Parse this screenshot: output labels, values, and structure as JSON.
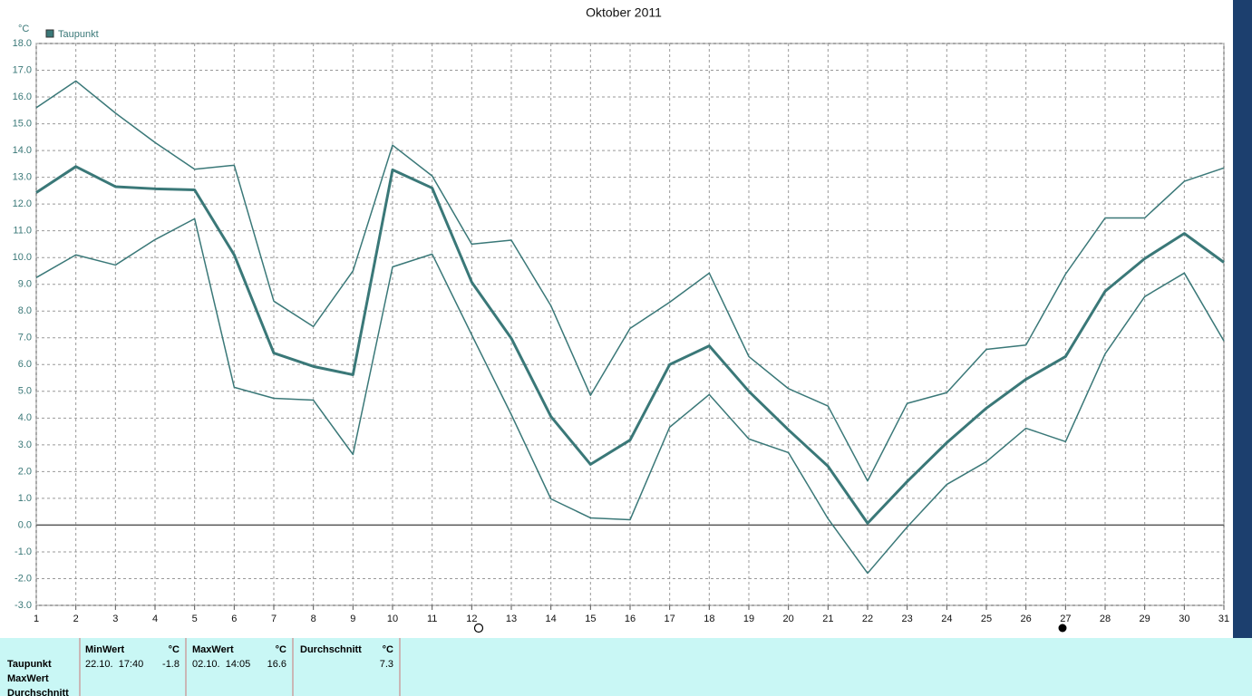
{
  "chart_data": {
    "type": "line",
    "title": "Oktober 2011",
    "y_unit": "°C",
    "x": [
      1,
      2,
      3,
      4,
      5,
      6,
      7,
      8,
      9,
      10,
      11,
      12,
      13,
      14,
      15,
      16,
      17,
      18,
      19,
      20,
      21,
      22,
      23,
      24,
      25,
      26,
      27,
      28,
      29,
      30,
      31
    ],
    "xlim": [
      1,
      31
    ],
    "xticks": [
      1,
      2,
      3,
      4,
      5,
      6,
      7,
      8,
      9,
      10,
      11,
      12,
      13,
      14,
      15,
      16,
      17,
      18,
      19,
      20,
      21,
      22,
      23,
      24,
      25,
      26,
      27,
      28,
      29,
      30,
      31
    ],
    "ylim": [
      -3,
      18
    ],
    "yticks": [
      {
        "value": -3,
        "label": "-3.0"
      },
      {
        "value": -2,
        "label": "-2.0"
      },
      {
        "value": -1,
        "label": "-1.0"
      },
      {
        "value": 0,
        "label": "0.0"
      },
      {
        "value": 1,
        "label": "1.0"
      },
      {
        "value": 2,
        "label": "2.0"
      },
      {
        "value": 3,
        "label": "3.0"
      },
      {
        "value": 4,
        "label": "4.0"
      },
      {
        "value": 5,
        "label": "5.0"
      },
      {
        "value": 6,
        "label": "6.0"
      },
      {
        "value": 7,
        "label": "7.0"
      },
      {
        "value": 8,
        "label": "8.0"
      },
      {
        "value": 9,
        "label": "9.0"
      },
      {
        "value": 10,
        "label": "10.0"
      },
      {
        "value": 11,
        "label": "11.0"
      },
      {
        "value": 12,
        "label": "12.0"
      },
      {
        "value": 13,
        "label": "13.0"
      },
      {
        "value": 14,
        "label": "14.0"
      },
      {
        "value": 15,
        "label": "15.0"
      },
      {
        "value": 16,
        "label": "16.0"
      },
      {
        "value": 17,
        "label": "17.0"
      },
      {
        "value": 18,
        "label": "18.0"
      }
    ],
    "grid": true,
    "legend": "top-left",
    "series": [
      {
        "color": "#3a7878",
        "width": 1.5,
        "values": [
          15.6,
          16.6,
          15.4,
          14.3,
          13.3,
          13.45,
          8.37,
          7.42,
          9.5,
          14.2,
          13.05,
          10.5,
          10.65,
          8.2,
          4.85,
          7.35,
          8.33,
          9.42,
          6.3,
          5.1,
          4.45,
          1.65,
          4.55,
          4.95,
          6.57,
          6.73,
          9.38,
          11.48,
          11.48,
          12.85,
          13.35
        ]
      },
      {
        "name": "Taupunkt",
        "color": "#3a7878",
        "width": 3,
        "values": [
          12.43,
          13.4,
          12.65,
          12.57,
          12.53,
          10.1,
          6.43,
          5.93,
          5.62,
          13.28,
          12.6,
          9.08,
          6.98,
          4.06,
          2.27,
          3.18,
          6.0,
          6.7,
          5.0,
          3.56,
          2.2,
          0.07,
          1.63,
          3.08,
          4.37,
          5.45,
          6.3,
          8.74,
          9.96,
          10.9,
          9.82
        ]
      },
      {
        "color": "#3a7878",
        "width": 1.5,
        "values": [
          9.25,
          10.1,
          9.72,
          10.67,
          11.45,
          5.15,
          4.74,
          4.67,
          2.64,
          9.65,
          10.13,
          7.11,
          4.13,
          0.98,
          0.27,
          0.2,
          3.66,
          4.88,
          3.22,
          2.71,
          0.24,
          -1.8,
          -0.07,
          1.52,
          2.37,
          3.62,
          3.12,
          6.4,
          8.54,
          9.42,
          6.88
        ]
      }
    ]
  },
  "stats": {
    "row_labels": [
      "Taupunkt",
      "MaxWert",
      "Durchschnitt"
    ],
    "columns": [
      {
        "title": "MinWert",
        "unit": "°C",
        "time": "22.10.  17:40",
        "value": -1.8
      },
      {
        "title": "MaxWert",
        "unit": "°C",
        "time": "02.10.  14:05",
        "value": 16.6
      },
      {
        "title": "Durchschnitt",
        "unit": "°C",
        "value": 7.3
      }
    ]
  }
}
